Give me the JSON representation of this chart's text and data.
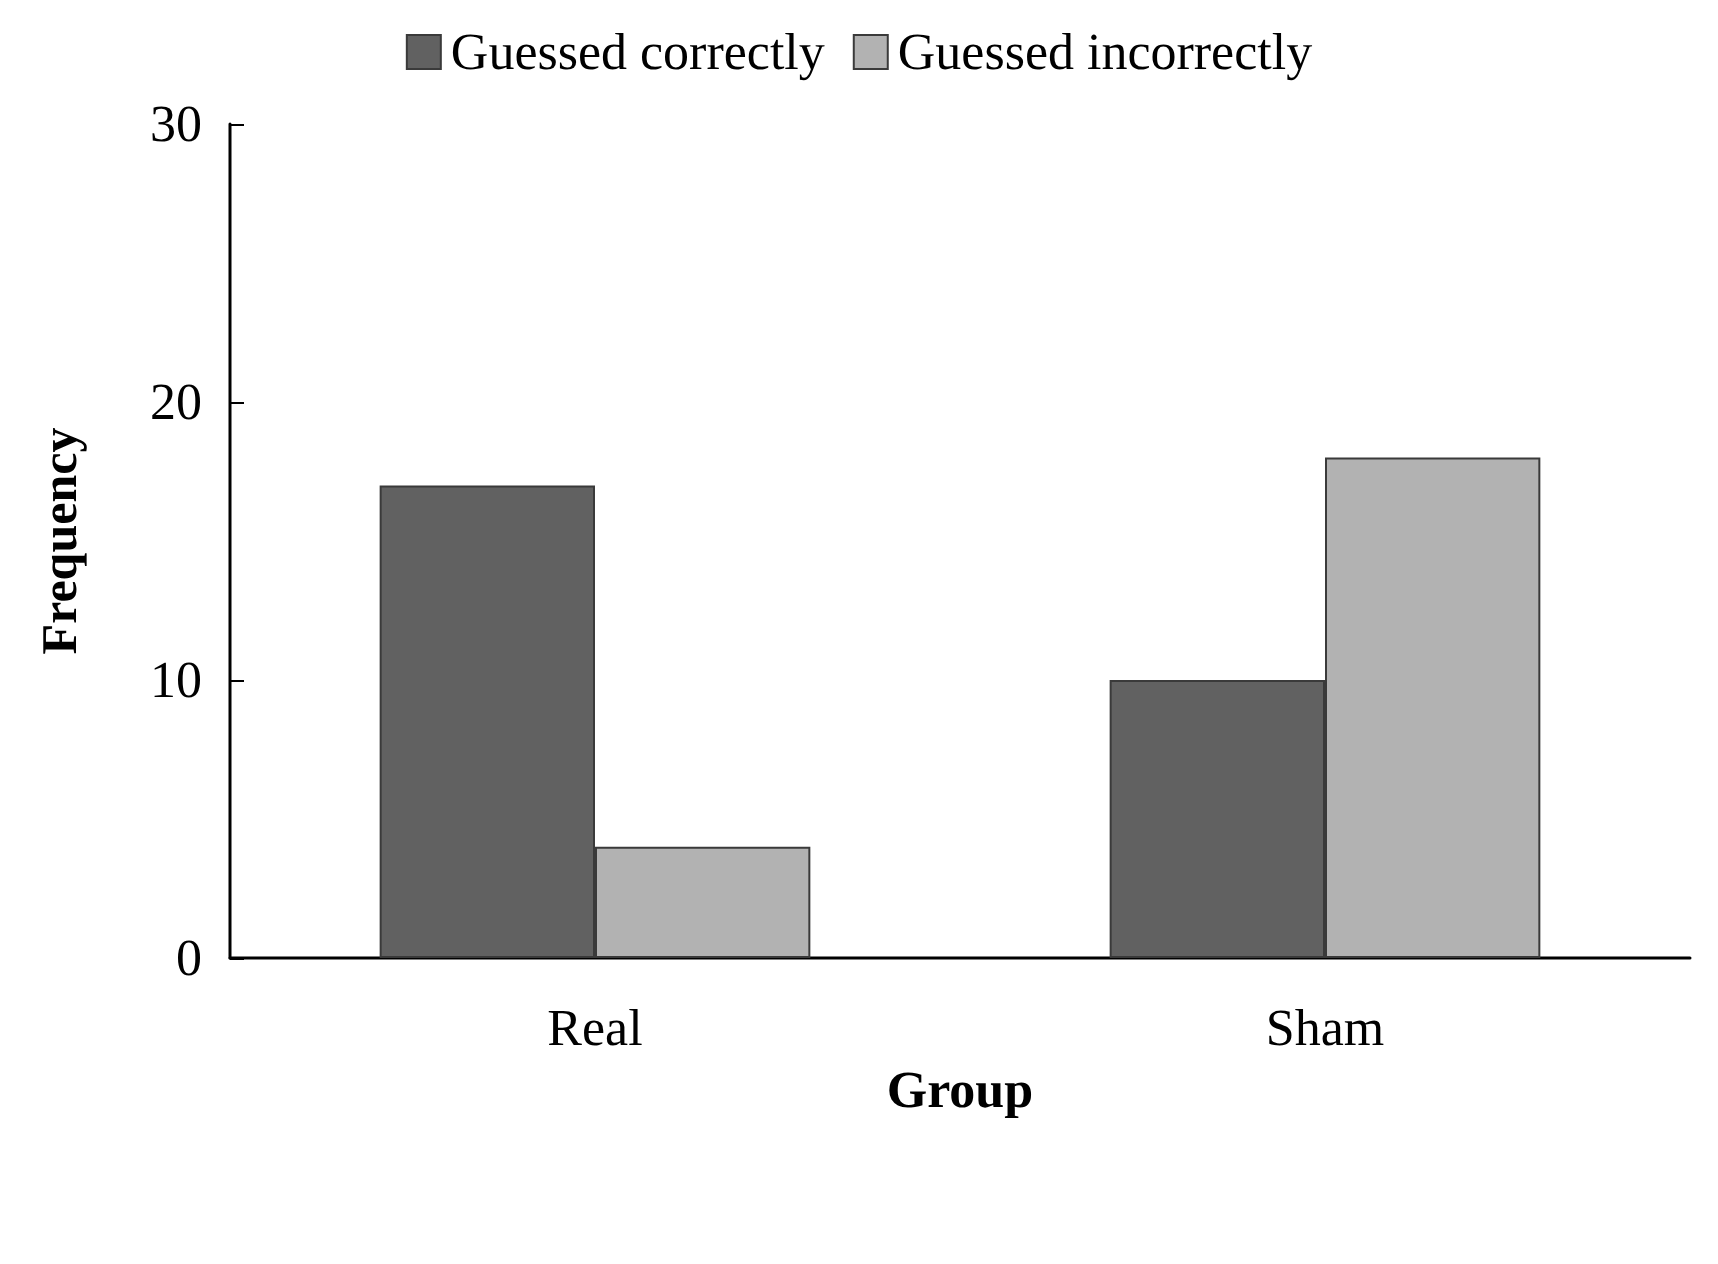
{
  "chart_data": {
    "type": "bar",
    "xlabel": "Group",
    "ylabel": "Frequency",
    "categories": [
      "Real",
      "Sham"
    ],
    "series": [
      {
        "name": "Guessed correctly",
        "color": "#616161",
        "values": [
          17,
          10
        ]
      },
      {
        "name": "Guessed incorrectly",
        "color": "#b2b2b2",
        "values": [
          4,
          18
        ]
      }
    ],
    "ylim": [
      0,
      30
    ],
    "yticks": [
      0,
      10,
      20,
      30
    ],
    "grid": false,
    "legend": "top"
  }
}
